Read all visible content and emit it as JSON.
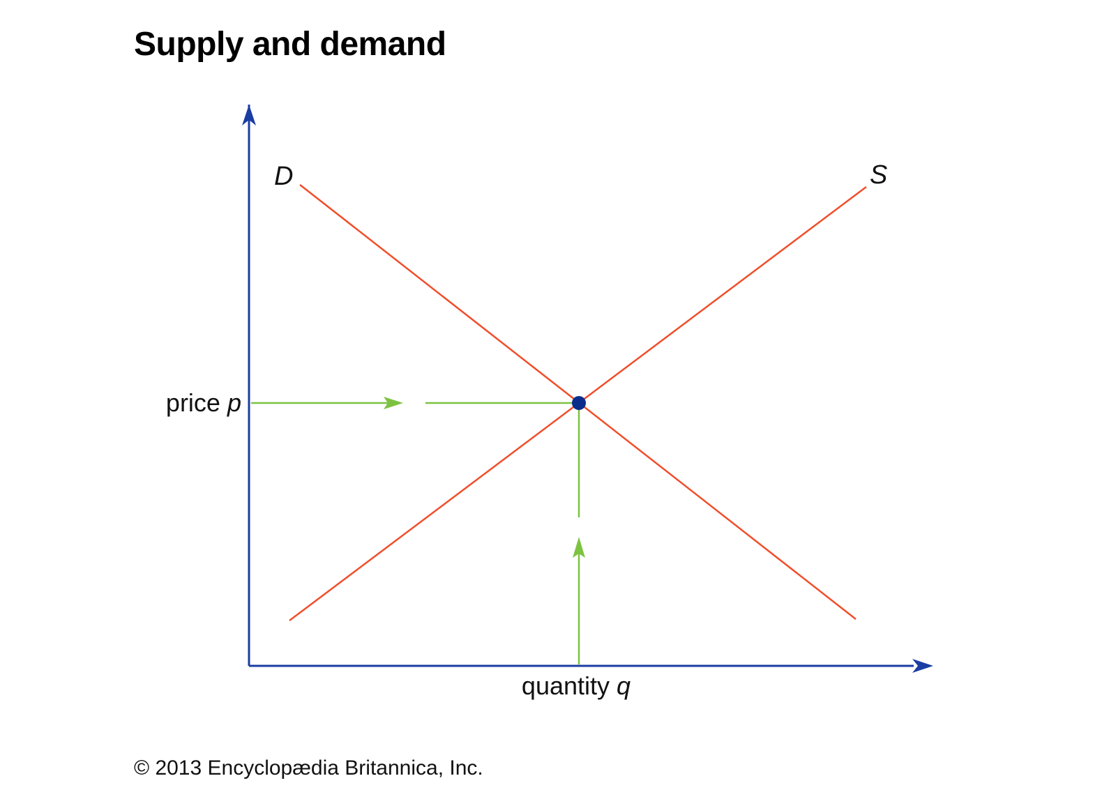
{
  "title": "Supply and demand",
  "labels": {
    "demand": "D",
    "supply": "S",
    "price_text": "price",
    "price_var": "p",
    "quantity_text": "quantity",
    "quantity_var": "q"
  },
  "copyright": "© 2013 Encyclopædia Britannica, Inc.",
  "colors": {
    "axis": "#1a3da3",
    "curve": "#f04e2a",
    "guide": "#7dc241",
    "point": "#0b2e8a"
  }
}
